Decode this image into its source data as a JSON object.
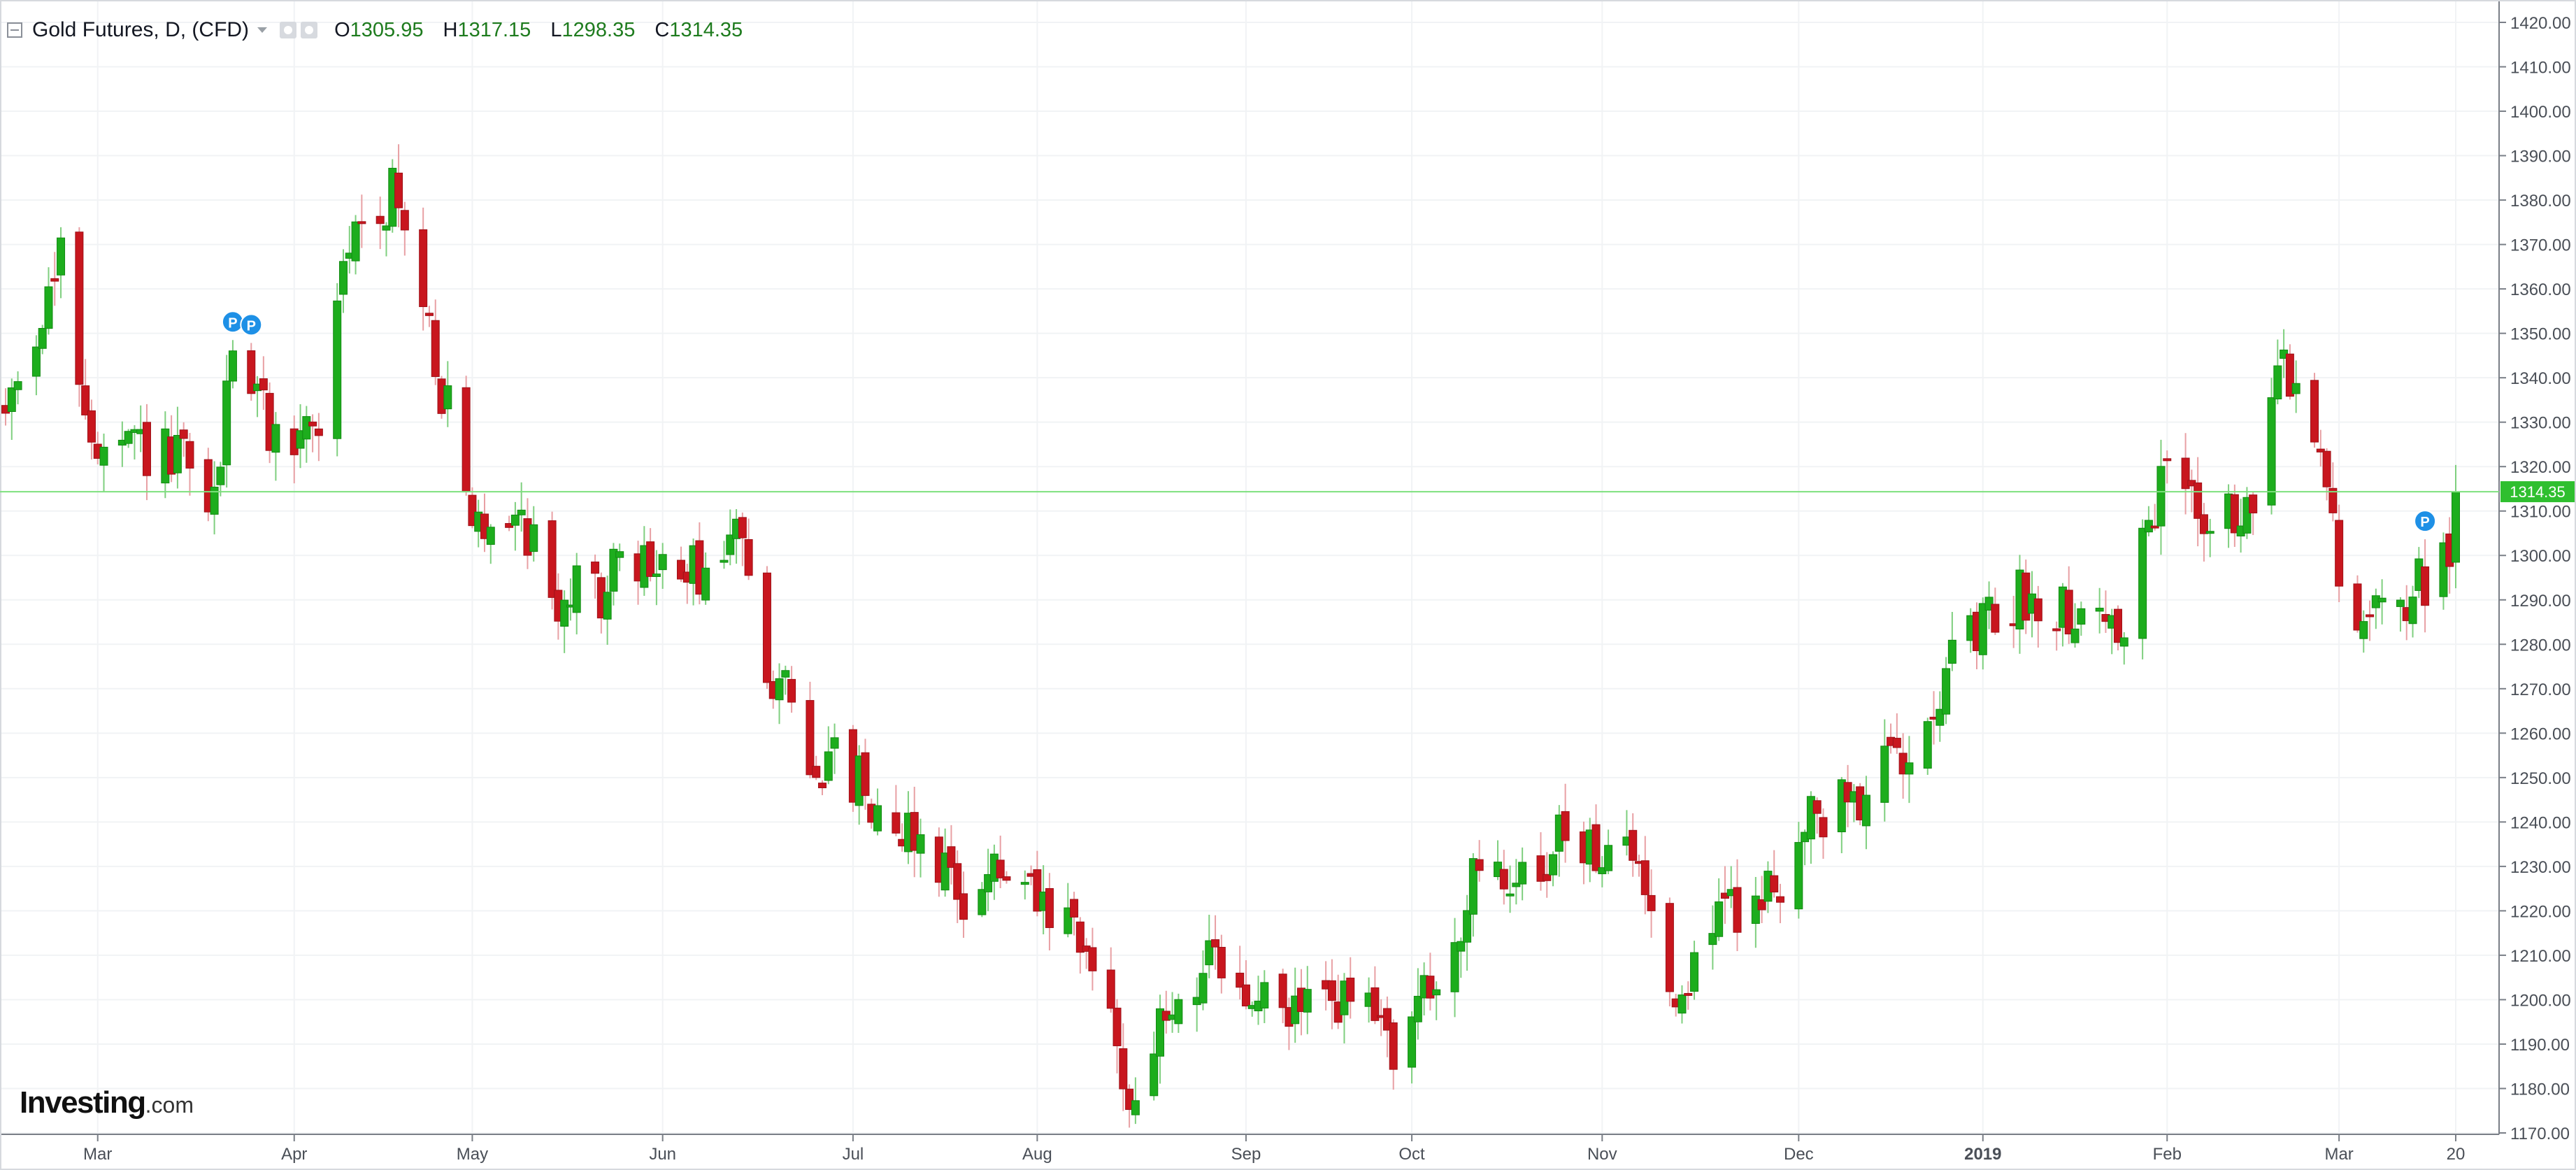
{
  "header": {
    "title": "Gold Futures, D, (CFD)",
    "open_label": "O",
    "open_value": "1305.95",
    "high_label": "H",
    "high_value": "1317.15",
    "low_label": "L",
    "low_value": "1298.35",
    "close_label": "C",
    "close_value": "1314.35"
  },
  "logo": {
    "name": "Investing",
    "domain": ".com"
  },
  "colors": {
    "up": "#1dad1d",
    "down": "#c8161e",
    "price_line": "#7ee07e",
    "marker": "#1e90e6"
  },
  "chart_data": {
    "type": "candlestick",
    "title": "Gold Futures, D, (CFD)",
    "last_price": 1314.35,
    "last_price_label": "1314.35",
    "ylim": [
      1168,
      1425
    ],
    "y_ticks": [
      "1170.00",
      "1180.00",
      "1190.00",
      "1200.00",
      "1210.00",
      "1220.00",
      "1230.00",
      "1240.00",
      "1250.00",
      "1260.00",
      "1270.00",
      "1280.00",
      "1290.00",
      "1300.00",
      "1310.00",
      "1320.00",
      "1330.00",
      "1340.00",
      "1350.00",
      "1360.00",
      "1370.00",
      "1380.00",
      "1390.00",
      "1400.00",
      "1410.00",
      "1420.00"
    ],
    "x_ticks": [
      {
        "label": "Mar",
        "date": "2018-03-01"
      },
      {
        "label": "Apr",
        "date": "2018-04-02"
      },
      {
        "label": "May",
        "date": "2018-05-01"
      },
      {
        "label": "Jun",
        "date": "2018-06-01"
      },
      {
        "label": "Jul",
        "date": "2018-07-02"
      },
      {
        "label": "Aug",
        "date": "2018-08-01"
      },
      {
        "label": "Sep",
        "date": "2018-09-04"
      },
      {
        "label": "Oct",
        "date": "2018-10-01"
      },
      {
        "label": "Nov",
        "date": "2018-11-01"
      },
      {
        "label": "Dec",
        "date": "2018-12-03"
      },
      {
        "label": "2019",
        "date": "2019-01-02",
        "bold": true
      },
      {
        "label": "Feb",
        "date": "2019-02-01"
      },
      {
        "label": "Mar",
        "date": "2019-03-01"
      },
      {
        "label": "20",
        "date": "2019-03-20"
      }
    ],
    "markers": [
      {
        "label": "P",
        "date": "2018-03-23"
      },
      {
        "label": "P",
        "date": "2018-03-26"
      },
      {
        "label": "P",
        "date": "2019-03-15"
      }
    ],
    "monthly_path": [
      {
        "date": "2018-02-14",
        "price": 1332
      },
      {
        "date": "2018-02-19",
        "price": 1352
      },
      {
        "date": "2018-02-23",
        "price": 1365
      },
      {
        "date": "2018-03-01",
        "price": 1320
      },
      {
        "date": "2018-03-08",
        "price": 1324
      },
      {
        "date": "2018-03-15",
        "price": 1320
      },
      {
        "date": "2018-03-20",
        "price": 1310
      },
      {
        "date": "2018-03-23",
        "price": 1350
      },
      {
        "date": "2018-03-30",
        "price": 1325
      },
      {
        "date": "2018-04-06",
        "price": 1330
      },
      {
        "date": "2018-04-11",
        "price": 1370
      },
      {
        "date": "2018-04-18",
        "price": 1383
      },
      {
        "date": "2018-04-25",
        "price": 1345
      },
      {
        "date": "2018-05-01",
        "price": 1305
      },
      {
        "date": "2018-05-08",
        "price": 1312
      },
      {
        "date": "2018-05-15",
        "price": 1290
      },
      {
        "date": "2018-05-21",
        "price": 1292
      },
      {
        "date": "2018-05-28",
        "price": 1298
      },
      {
        "date": "2018-06-04",
        "price": 1295
      },
      {
        "date": "2018-06-11",
        "price": 1298
      },
      {
        "date": "2018-06-14",
        "price": 1307
      },
      {
        "date": "2018-06-18",
        "price": 1278
      },
      {
        "date": "2018-06-25",
        "price": 1255
      },
      {
        "date": "2018-07-02",
        "price": 1250
      },
      {
        "date": "2018-07-09",
        "price": 1241
      },
      {
        "date": "2018-07-16",
        "price": 1232
      },
      {
        "date": "2018-07-19",
        "price": 1224
      },
      {
        "date": "2018-07-24",
        "price": 1229
      },
      {
        "date": "2018-07-31",
        "price": 1222
      },
      {
        "date": "2018-08-07",
        "price": 1213
      },
      {
        "date": "2018-08-13",
        "price": 1198
      },
      {
        "date": "2018-08-16",
        "price": 1177
      },
      {
        "date": "2018-08-20",
        "price": 1190
      },
      {
        "date": "2018-08-24",
        "price": 1200
      },
      {
        "date": "2018-08-28",
        "price": 1208
      },
      {
        "date": "2018-09-04",
        "price": 1200
      },
      {
        "date": "2018-09-11",
        "price": 1197
      },
      {
        "date": "2018-09-18",
        "price": 1201
      },
      {
        "date": "2018-09-25",
        "price": 1195
      },
      {
        "date": "2018-09-28",
        "price": 1191
      },
      {
        "date": "2018-10-05",
        "price": 1203
      },
      {
        "date": "2018-10-11",
        "price": 1225
      },
      {
        "date": "2018-10-18",
        "price": 1227
      },
      {
        "date": "2018-10-25",
        "price": 1235
      },
      {
        "date": "2018-11-01",
        "price": 1235
      },
      {
        "date": "2018-11-08",
        "price": 1228
      },
      {
        "date": "2018-11-13",
        "price": 1200
      },
      {
        "date": "2018-11-20",
        "price": 1220
      },
      {
        "date": "2018-11-27",
        "price": 1222
      },
      {
        "date": "2018-12-04",
        "price": 1238
      },
      {
        "date": "2018-12-11",
        "price": 1245
      },
      {
        "date": "2018-12-18",
        "price": 1252
      },
      {
        "date": "2018-12-24",
        "price": 1268
      },
      {
        "date": "2018-12-31",
        "price": 1280
      },
      {
        "date": "2019-01-07",
        "price": 1290
      },
      {
        "date": "2019-01-14",
        "price": 1290
      },
      {
        "date": "2019-01-22",
        "price": 1285
      },
      {
        "date": "2019-01-25",
        "price": 1283
      },
      {
        "date": "2019-01-28",
        "price": 1300
      },
      {
        "date": "2019-02-01",
        "price": 1320
      },
      {
        "date": "2019-02-08",
        "price": 1310
      },
      {
        "date": "2019-02-14",
        "price": 1307
      },
      {
        "date": "2019-02-20",
        "price": 1343
      },
      {
        "date": "2019-02-26",
        "price": 1325
      },
      {
        "date": "2019-03-01",
        "price": 1294
      },
      {
        "date": "2019-03-07",
        "price": 1285
      },
      {
        "date": "2019-03-14",
        "price": 1293
      },
      {
        "date": "2019-03-18",
        "price": 1303
      },
      {
        "date": "2019-03-20",
        "price": 1306
      }
    ]
  }
}
